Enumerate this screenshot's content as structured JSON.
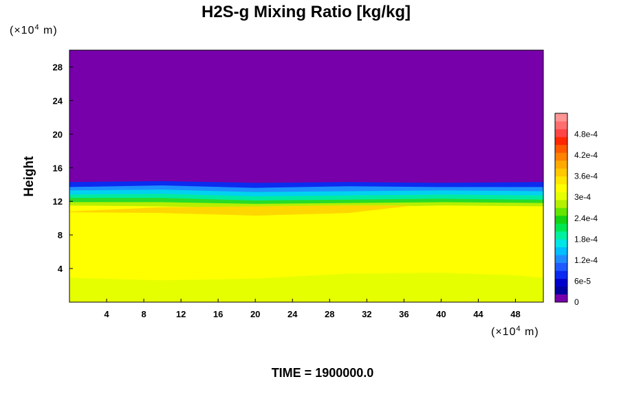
{
  "chart_data": {
    "type": "heatmap",
    "title": "H2S-g Mixing Ratio [kg/kg]",
    "ylabel": "Height",
    "y_unit": {
      "prefix": "(×10",
      "exponent": "4",
      "suffix": " m)"
    },
    "x_unit": {
      "prefix": "(×10",
      "exponent": "4",
      "suffix": " m)"
    },
    "xlim": [
      0,
      51
    ],
    "ylim": [
      0,
      30
    ],
    "x_ticks": [
      {
        "value": 4,
        "label": "4"
      },
      {
        "value": 8,
        "label": "8"
      },
      {
        "value": 12,
        "label": "12"
      },
      {
        "value": 16,
        "label": "16"
      },
      {
        "value": 20,
        "label": "20"
      },
      {
        "value": 24,
        "label": "24"
      },
      {
        "value": 28,
        "label": "28"
      },
      {
        "value": 32,
        "label": "32"
      },
      {
        "value": 36,
        "label": "36"
      },
      {
        "value": 40,
        "label": "40"
      },
      {
        "value": 44,
        "label": "44"
      },
      {
        "value": 48,
        "label": "48"
      }
    ],
    "y_ticks": [
      {
        "value": 4,
        "label": "4"
      },
      {
        "value": 8,
        "label": "8"
      },
      {
        "value": 12,
        "label": "12"
      },
      {
        "value": 16,
        "label": "16"
      },
      {
        "value": 20,
        "label": "20"
      },
      {
        "value": 24,
        "label": "24"
      },
      {
        "value": 28,
        "label": "28"
      }
    ],
    "colorbar": {
      "vmin": 0,
      "vmax": 0.00054,
      "ticks": [
        {
          "value": 0,
          "label": "0"
        },
        {
          "value": 6e-05,
          "label": "6e-5"
        },
        {
          "value": 0.00012,
          "label": "1.2e-4"
        },
        {
          "value": 0.00018,
          "label": "1.8e-4"
        },
        {
          "value": 0.00024,
          "label": "2.4e-4"
        },
        {
          "value": 0.0003,
          "label": "3e-4"
        },
        {
          "value": 0.00036,
          "label": "3.6e-4"
        },
        {
          "value": 0.00042,
          "label": "4.2e-4"
        },
        {
          "value": 0.00048,
          "label": "4.8e-4"
        }
      ],
      "colors": [
        "#7700aa",
        "#0000a0",
        "#0000cc",
        "#0a28f0",
        "#1e5aff",
        "#1e8cff",
        "#00beff",
        "#00e6e6",
        "#00f0a0",
        "#00e650",
        "#14d214",
        "#64e600",
        "#b4f000",
        "#e6ff00",
        "#ffff00",
        "#ffe600",
        "#ffc800",
        "#ffaa00",
        "#ff8200",
        "#ff5a00",
        "#ff2800",
        "#ff4646",
        "#ff6e6e",
        "#ff9696"
      ]
    },
    "field_layers": [
      {
        "name": "upper-region",
        "value": 0.0,
        "color": "#7700aa",
        "profile": [
          [
            0,
            14.5
          ],
          [
            10,
            14.8
          ],
          [
            20,
            14.6
          ],
          [
            30,
            14.7
          ],
          [
            40,
            14.6
          ],
          [
            51,
            14.6
          ]
        ]
      },
      {
        "name": "blue-band",
        "value": 9e-05,
        "color": "#0a2cf0",
        "profile": [
          [
            0,
            14.3
          ],
          [
            10,
            14.4
          ],
          [
            20,
            14.2
          ],
          [
            30,
            14.3
          ],
          [
            40,
            14.2
          ],
          [
            51,
            14.3
          ]
        ]
      },
      {
        "name": "light-blue-band",
        "value": 0.00015,
        "color": "#1e90ff",
        "profile": [
          [
            0,
            13.7
          ],
          [
            10,
            13.9
          ],
          [
            20,
            13.6
          ],
          [
            30,
            13.8
          ],
          [
            40,
            13.7
          ],
          [
            51,
            13.7
          ]
        ]
      },
      {
        "name": "cyan-band",
        "value": 0.0002,
        "color": "#00d2f0",
        "profile": [
          [
            0,
            13.3
          ],
          [
            10,
            13.4
          ],
          [
            20,
            13.1
          ],
          [
            30,
            13.2
          ],
          [
            40,
            13.3
          ],
          [
            51,
            13.2
          ]
        ]
      },
      {
        "name": "teal-band",
        "value": 0.00025,
        "color": "#00eba0",
        "profile": [
          [
            0,
            12.8
          ],
          [
            10,
            12.9
          ],
          [
            20,
            12.6
          ],
          [
            30,
            12.7
          ],
          [
            40,
            12.8
          ],
          [
            51,
            12.7
          ]
        ]
      },
      {
        "name": "green-band",
        "value": 0.0003,
        "color": "#28dc28",
        "profile": [
          [
            0,
            12.4
          ],
          [
            10,
            12.4
          ],
          [
            20,
            12.1
          ],
          [
            30,
            12.2
          ],
          [
            40,
            12.3
          ],
          [
            51,
            12.2
          ]
        ]
      },
      {
        "name": "lime-band",
        "value": 0.00033,
        "color": "#b4f000",
        "profile": [
          [
            0,
            11.9
          ],
          [
            10,
            11.9
          ],
          [
            20,
            11.7
          ],
          [
            30,
            11.8
          ],
          [
            40,
            11.9
          ],
          [
            51,
            11.8
          ]
        ]
      },
      {
        "name": "yellow-bulk",
        "value": 0.00036,
        "color": "#ffff00",
        "profile": [
          [
            0,
            11.5
          ],
          [
            10,
            11.4
          ],
          [
            20,
            11.2
          ],
          [
            30,
            11.3
          ],
          [
            40,
            11.5
          ],
          [
            51,
            11.4
          ]
        ]
      },
      {
        "name": "yellowish-lower",
        "value": 0.00034,
        "color": "#e6ff00",
        "profile": [
          [
            0,
            2.9
          ],
          [
            10,
            2.6
          ],
          [
            20,
            2.8
          ],
          [
            30,
            3.4
          ],
          [
            40,
            3.5
          ],
          [
            48,
            3.2
          ],
          [
            51,
            2.9
          ]
        ]
      }
    ],
    "field_patches": [
      {
        "name": "orange-lens",
        "value": 0.0004,
        "color": "#ffd700",
        "top": [
          [
            0,
            10.8
          ],
          [
            10,
            11.3
          ],
          [
            20,
            11.4
          ],
          [
            30,
            11.5
          ],
          [
            37,
            11.5
          ]
        ],
        "bottom": [
          [
            37,
            11.5
          ],
          [
            30,
            10.6
          ],
          [
            20,
            10.3
          ],
          [
            10,
            10.6
          ],
          [
            0,
            10.7
          ]
        ]
      }
    ]
  },
  "time_label": "TIME = 1900000.0"
}
